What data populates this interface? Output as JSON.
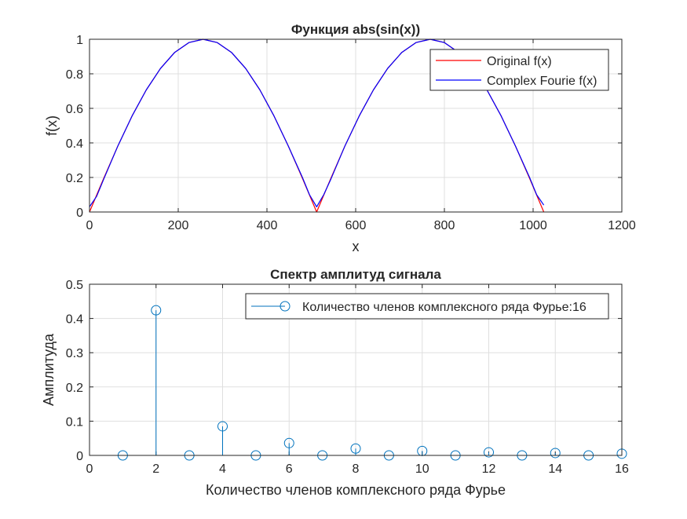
{
  "chart_data": [
    {
      "type": "line",
      "title": "Функция abs(sin(x))",
      "xlabel": "x",
      "ylabel": "f(x)",
      "xlim": [
        0,
        1200
      ],
      "ylim": [
        0,
        1
      ],
      "xticks": [
        "0",
        "200",
        "400",
        "600",
        "800",
        "1000",
        "1200"
      ],
      "yticks": [
        "0",
        "0.2",
        "0.4",
        "0.6",
        "0.8",
        "1"
      ],
      "grid": true,
      "legend_position": "top-right",
      "series": [
        {
          "name": "Original f(x)",
          "color": "#ff0000",
          "x": [
            0,
            32,
            64,
            96,
            128,
            160,
            192,
            224,
            256,
            288,
            320,
            352,
            384,
            416,
            448,
            480,
            512,
            544,
            576,
            608,
            640,
            672,
            704,
            736,
            768,
            800,
            832,
            864,
            896,
            928,
            960,
            992,
            1024
          ],
          "y": [
            0,
            0.195,
            0.383,
            0.556,
            0.707,
            0.831,
            0.924,
            0.981,
            1,
            0.981,
            0.924,
            0.831,
            0.707,
            0.556,
            0.383,
            0.195,
            0,
            0.195,
            0.383,
            0.556,
            0.707,
            0.831,
            0.924,
            0.981,
            1,
            0.981,
            0.924,
            0.831,
            0.707,
            0.556,
            0.383,
            0.195,
            0
          ]
        },
        {
          "name": "Complex Fourie f(x)",
          "color": "#0000ff",
          "x": [
            0,
            16,
            32,
            64,
            96,
            128,
            160,
            192,
            224,
            256,
            288,
            320,
            352,
            384,
            416,
            448,
            480,
            496,
            512,
            528,
            544,
            576,
            608,
            640,
            672,
            704,
            736,
            768,
            800,
            832,
            864,
            896,
            928,
            960,
            992,
            1008,
            1024
          ],
          "y": [
            0.03,
            0.09,
            0.19,
            0.383,
            0.556,
            0.707,
            0.831,
            0.924,
            0.981,
            1,
            0.981,
            0.924,
            0.831,
            0.707,
            0.556,
            0.383,
            0.2,
            0.1,
            0.03,
            0.1,
            0.19,
            0.383,
            0.556,
            0.707,
            0.831,
            0.924,
            0.981,
            1,
            0.981,
            0.924,
            0.831,
            0.707,
            0.556,
            0.383,
            0.2,
            0.1,
            0.04
          ]
        }
      ]
    },
    {
      "type": "stem",
      "title": "Спектр амплитуд сигнала",
      "xlabel": "Количество членов комплексного ряда Фурье",
      "ylabel": "Амплитуда",
      "xlim": [
        0,
        16
      ],
      "ylim": [
        0,
        0.5
      ],
      "xticks": [
        "0",
        "2",
        "4",
        "6",
        "8",
        "10",
        "12",
        "14",
        "16"
      ],
      "yticks": [
        "0",
        "0.1",
        "0.2",
        "0.3",
        "0.4",
        "0.5"
      ],
      "grid": true,
      "legend_position": "top-right",
      "series": [
        {
          "name": "Количество членов комплексного ряда Фурье:16",
          "color": "#0072bd",
          "x": [
            1,
            2,
            3,
            4,
            5,
            6,
            7,
            8,
            9,
            10,
            11,
            12,
            13,
            14,
            15,
            16
          ],
          "y": [
            0,
            0.424,
            0,
            0.085,
            0,
            0.036,
            0,
            0.02,
            0,
            0.013,
            0,
            0.009,
            0,
            0.007,
            0,
            0.005
          ]
        }
      ]
    }
  ]
}
